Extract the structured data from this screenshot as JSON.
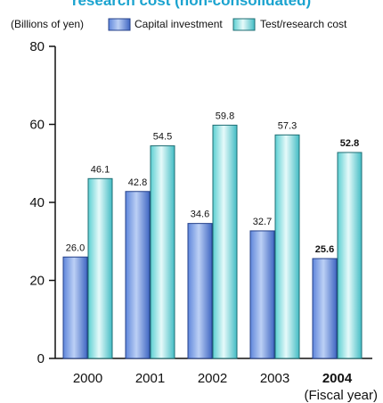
{
  "chart_data": {
    "type": "bar",
    "title": "research cost (non-consolidated)",
    "unit_label": "(Billions of yen)",
    "xlabel": "(Fiscal year)",
    "categories": [
      "2000",
      "2001",
      "2002",
      "2003",
      "2004"
    ],
    "highlight_category": "2004",
    "ylim": [
      0,
      80
    ],
    "yticks": [
      "0",
      "20",
      "40",
      "60",
      "80"
    ],
    "series": [
      {
        "name": "Capital investment",
        "values": [
          26.0,
          42.8,
          34.6,
          32.7,
          25.6
        ],
        "labels": [
          "26.0",
          "42.8",
          "34.6",
          "32.7",
          "25.6"
        ],
        "color": "#4f7fd4"
      },
      {
        "name": "Test/research cost",
        "values": [
          46.1,
          54.5,
          59.8,
          57.3,
          52.8
        ],
        "labels": [
          "46.1",
          "54.5",
          "59.8",
          "57.3",
          "52.8"
        ],
        "color": "#6fd3d6"
      }
    ],
    "legend_position": "top",
    "grid": false
  }
}
